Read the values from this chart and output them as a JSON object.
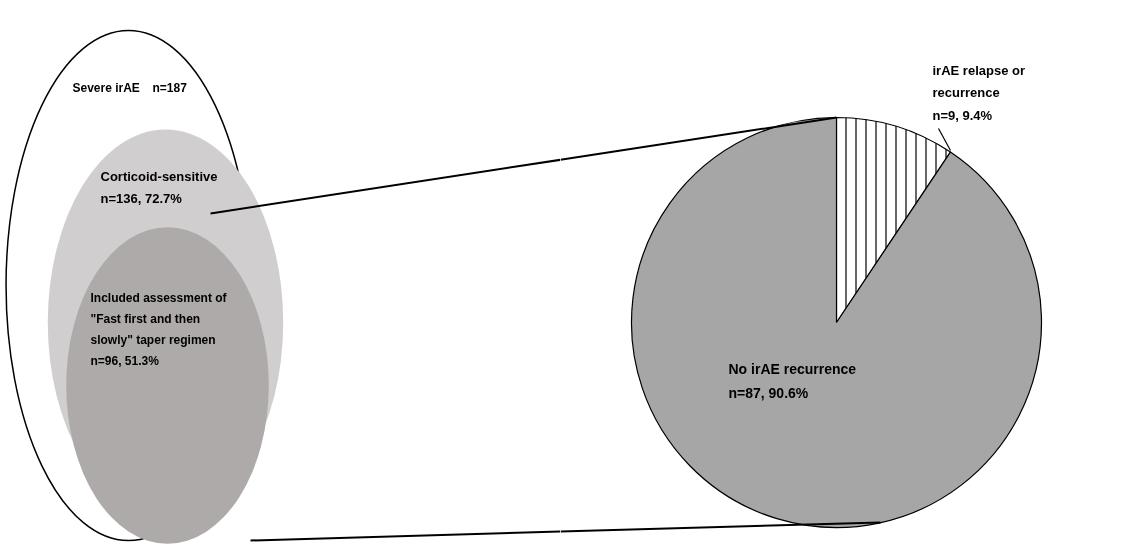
{
  "chart_data": [
    {
      "type": "other",
      "categories": [
        "Severe irAE",
        "Corticoid-sensitive",
        "Included assessment of \"Fast first and then slowly\" taper regimen"
      ],
      "values": [
        187,
        136,
        96
      ],
      "value_labels": [
        "n=187",
        "n=136, 72.7%",
        "n=96, 51.3%"
      ],
      "colors": [
        "#ffffff",
        "#d0cece",
        "#aeaaaa"
      ]
    },
    {
      "type": "pie",
      "categories": [
        "irAE relapse or recurrence",
        "No irAE recurrence"
      ],
      "values": [
        9,
        87
      ],
      "value_labels": [
        "n=9, 9.4%",
        "n=87, 90.6%"
      ],
      "colors": [
        "#ffffff",
        "#a6a6a6"
      ]
    }
  ]
}
